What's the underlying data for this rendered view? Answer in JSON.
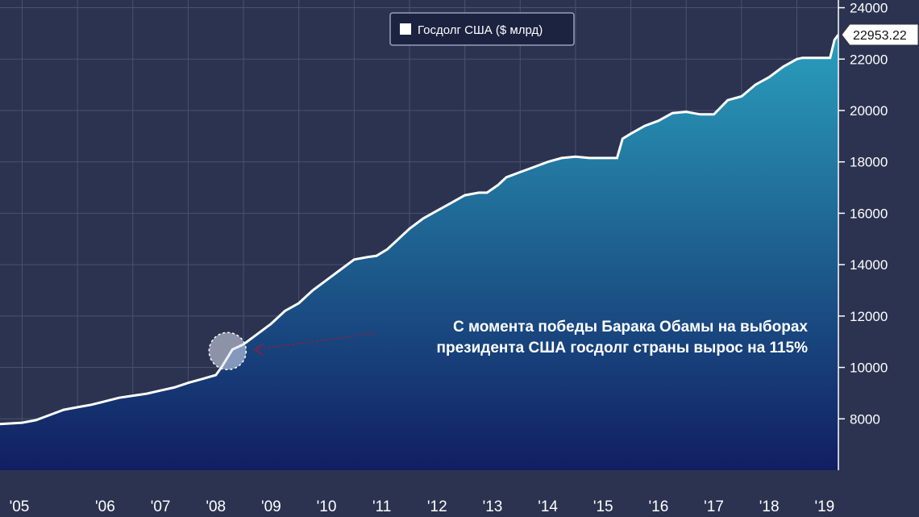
{
  "colors": {
    "background": "#2b3350",
    "grid": "#4a5270",
    "area_top": "#2a9fbd",
    "area_bottom": "#111e62",
    "line": "#ffffff",
    "axis_panel": "#2b3350",
    "annotation_arrow": "#8a2040"
  },
  "chart_data": {
    "type": "area",
    "title": "",
    "xlabel": "",
    "ylabel": "",
    "legend": {
      "label": "Госдолг США ($ млрд)",
      "position": "top-center"
    },
    "x_tick_labels": [
      "'05",
      "'06",
      "'07",
      "'08",
      "'09",
      "'10",
      "'11",
      "'12",
      "'13",
      "'14",
      "'15",
      "'16",
      "'17",
      "'18",
      "'19"
    ],
    "y_ticks": [
      8000,
      10000,
      12000,
      14000,
      16000,
      18000,
      20000,
      22000,
      24000
    ],
    "ylim": [
      6000,
      24300
    ],
    "xlim": [
      2004.6,
      2019.75
    ],
    "grid": true,
    "y_axis_position": "right",
    "last_value_label": "22953.22",
    "series": [
      {
        "name": "Госдолг США ($ млрд)",
        "x": [
          2004.6,
          2005.0,
          2005.25,
          2005.5,
          2005.75,
          2006.0,
          2006.25,
          2006.5,
          2006.75,
          2007.0,
          2007.25,
          2007.5,
          2007.75,
          2008.0,
          2008.25,
          2008.5,
          2008.6,
          2008.7,
          2008.8,
          2008.9,
          2009.0,
          2009.25,
          2009.5,
          2009.75,
          2010.0,
          2010.25,
          2010.5,
          2010.75,
          2011.0,
          2011.25,
          2011.4,
          2011.6,
          2011.75,
          2012.0,
          2012.25,
          2012.5,
          2012.75,
          2013.0,
          2013.25,
          2013.4,
          2013.6,
          2013.75,
          2014.0,
          2014.25,
          2014.5,
          2014.75,
          2015.0,
          2015.25,
          2015.5,
          2015.75,
          2015.85,
          2016.0,
          2016.25,
          2016.5,
          2016.75,
          2017.0,
          2017.25,
          2017.5,
          2017.75,
          2018.0,
          2018.25,
          2018.5,
          2018.75,
          2019.0,
          2019.1,
          2019.25,
          2019.5,
          2019.6,
          2019.68,
          2019.75
        ],
        "values": [
          7800,
          7850,
          7950,
          8150,
          8350,
          8450,
          8550,
          8680,
          8820,
          8900,
          8980,
          9100,
          9220,
          9400,
          9550,
          9700,
          10000,
          10350,
          10700,
          10800,
          10900,
          11300,
          11700,
          12200,
          12500,
          13000,
          13400,
          13800,
          14200,
          14300,
          14340,
          14600,
          14900,
          15400,
          15800,
          16100,
          16400,
          16700,
          16800,
          16800,
          17100,
          17400,
          17600,
          17800,
          18000,
          18150,
          18200,
          18150,
          18150,
          18150,
          18900,
          19100,
          19400,
          19600,
          19900,
          19950,
          19850,
          19850,
          20400,
          20550,
          21000,
          21300,
          21700,
          22000,
          22050,
          22050,
          22050,
          22050,
          22750,
          22950
        ]
      }
    ],
    "annotations": [
      {
        "lines": [
          "С момента победы Барака Обамы на выборах",
          "президента США госдолг страны вырос на 115%"
        ],
        "target_x": 2008.8,
        "target_y": 10700,
        "marker": "circle-highlight"
      }
    ]
  }
}
